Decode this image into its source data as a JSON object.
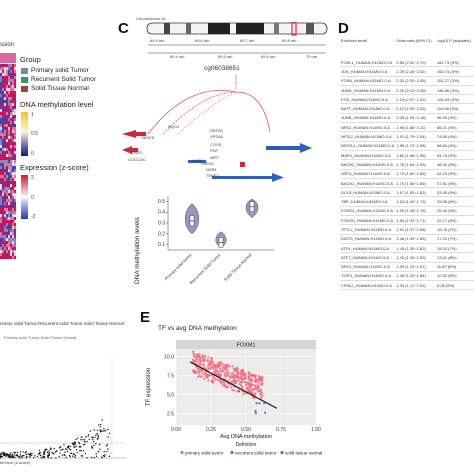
{
  "panelA": {
    "title_fragment": "ssion",
    "group_title": "Group",
    "groups": [
      {
        "label": "Primary solid Tumor",
        "color": "#7f8c8d"
      },
      {
        "label": "Recurrent Solid Tumor",
        "color": "#2e9e5b"
      },
      {
        "label": "Solid Tissue Normal",
        "color": "#a04040"
      }
    ],
    "methylation_title": "DNA methylation level",
    "methylation_ticks": [
      "1",
      "0.5",
      "0"
    ],
    "expression_title": "Expression (z-score)",
    "expression_ticks": [
      "2",
      "0",
      "-2"
    ]
  },
  "panelB": {
    "legend_fragment": "rimary solid Tumor  Recurrent solid Tumor  Solid Tissue Normal",
    "sub_legend": "Primary solid Tumor   Solid Tissue Normal",
    "xlabel_fragment": "ference (z-score)"
  },
  "panelC": {
    "letter": "C",
    "chromosome": "Chromosome 16",
    "bands_top": [
      "69.5 mb",
      "69.6 mb",
      "69.7 mb",
      "69.8 mb"
    ],
    "bands_bottom": [
      "69.4 mb",
      "69.5 mb",
      "69.6 mb",
      "70 mb"
    ],
    "probe": "cg06038651",
    "genes": [
      "NQO1",
      "NFAT5",
      "WWP2",
      "CLEC18C",
      "SNTB2",
      "VPS4A",
      "COG8",
      "PDF",
      "NIP7",
      "TMED6",
      "NOB1",
      "TERF2",
      "CYB5B",
      "AARS"
    ],
    "violin": {
      "ylabel": "DNA methylation levels",
      "yticks": [
        "0.5",
        "0.4",
        "0.3",
        "0.2",
        "0.1"
      ],
      "categories": [
        "Primary solid tumor",
        "Recurrent Solid Tumor",
        "Solid Tissue Normal"
      ],
      "medians": [
        0.32,
        0.12,
        0.45
      ]
    }
  },
  "panelD": {
    "letter": "D",
    "headers": [
      "Enriched motif",
      "Odds ratio (95% CI)",
      "-log10 P (adjusted)"
    ],
    "rows": [
      [
        "FOSL1_HUMAN.H11MO.0.A",
        "2.55 (2.42~2.70)",
        "181.73 (3%)"
      ],
      [
        "JUN_HUMAN.H11MO.0.A",
        "2.39 (2.26~2.52)",
        "163.74 (3%)"
      ],
      [
        "FOSB_HUMAN.H11MO.0.A",
        "2.32 (2.20~2.45)",
        "151.27 (3%)"
      ],
      [
        "JUND_HUMAN.H11MO.0.A",
        "2.26 (2.13~2.39)",
        "146.66 (3%)"
      ],
      [
        "FOS_HUMAN.H11MO.0.A",
        "2.19 (2.07~2.32)",
        "126.43 (3%)"
      ],
      [
        "BATF_HUMAN.H11MO.0.A",
        "2.12 (2.00~2.25)",
        "119.68 (3%)"
      ],
      [
        "JUNB_HUMAN.H11MO.0.A",
        "2.05 (1.93~2.18)",
        "96.93 (4%)"
      ],
      [
        "NFE2_HUMAN.H11MO.0.A",
        "1.98 (1.86~2.11)",
        "85.21 (4%)"
      ],
      [
        "NF2L2_HUMAN.H11MO.0.A",
        "1.91 (1.79~2.04)",
        "74.65 (4%)"
      ],
      [
        "NFE2L1_HUMAN.H11MO.0.A",
        "1.85 (1.73~1.98)",
        "66.84 (4%)"
      ],
      [
        "MAFK_HUMAN.H11MO.0.A",
        "1.82 (1.68~1.96)",
        "54.73 (5%)"
      ],
      [
        "BACH2_HUMAN.H11MO.0.A",
        "1.78 (1.64~1.93)",
        "48.52 (5%)"
      ],
      [
        "HSF4_HUMAN.H11MO.0.A",
        "1.74 (1.60~1.89)",
        "42.19 (5%)"
      ],
      [
        "BACH1_HUMAN.H11MO.0.A",
        "1.70 (1.56~1.85)",
        "37.81 (5%)"
      ],
      [
        "DLX3_HUMAN.H11MO.0.A",
        "1.67 (1.53~1.82)",
        "33.45 (6%)"
      ],
      [
        "TBP_HUMAN.H11MO.0.A",
        "1.63 (1.49~1.79)",
        "29.06 (6%)"
      ],
      [
        "FOXD3_HUMAN.H11MO.0.A",
        "1.59 (1.45~1.75)",
        "25.34 (6%)"
      ],
      [
        "FOXO6_HUMAN.H11MO.0.A",
        "1.55 (1.41~1.71)",
        "22.17 (6%)"
      ],
      [
        "TF7L2_HUMAN.H11MO.0.A",
        "1.52 (1.37~1.68)",
        "19.76 (7%)"
      ],
      [
        "DDIT3_HUMAN.H11MO.0.A",
        "1.48 (1.33~1.65)",
        "17.22 (7%)"
      ],
      [
        "ATF4_HUMAN.H11MO.0.A",
        "1.45 (1.30~1.62)",
        "15.03 (7%)"
      ],
      [
        "ATF7_HUMAN.H11MO.0.A",
        "1.42 (1.26~1.59)",
        "13.41 (8%)"
      ],
      [
        "NFE2_HUMAN.H11MO.0.A",
        "1.39 (1.23~1.57)",
        "11.87 (8%)"
      ],
      [
        "TGIF1_HUMAN.H11MO.0.A",
        "1.36 (1.20~1.54)",
        "10.52 (8%)"
      ],
      [
        "CR3L2_HUMAN.H11MO.0.A",
        "1.33 (1.17~1.52)",
        "9.28 (9%)"
      ]
    ]
  },
  "panelE": {
    "letter": "E",
    "title": "TF vs avg DNA methylation",
    "facet": "FOXM1",
    "ylabel": "TF expression",
    "xlabel": "Avg DNA methylation",
    "xticks": [
      "0.00",
      "0.25",
      "0.50",
      "0.75",
      "1.00"
    ],
    "yticks": [
      "10.0",
      "7.5",
      "5.0",
      "2.5"
    ],
    "legend_title": "Definition",
    "legend": [
      {
        "label": "primary solid tumor",
        "color": "#f06b7c"
      },
      {
        "label": "recurrent solid tumor",
        "color": "#2e9e5b"
      },
      {
        "label": "solid tissue normal",
        "color": "#4a78c8"
      }
    ]
  },
  "colors": {
    "heatmap_red": "#c2185b",
    "heatmap_blue": "#3949ab",
    "violin_fill": "#7a6fb0",
    "line_blue": "#2f5fc0",
    "gene_red": "#d0283a"
  }
}
